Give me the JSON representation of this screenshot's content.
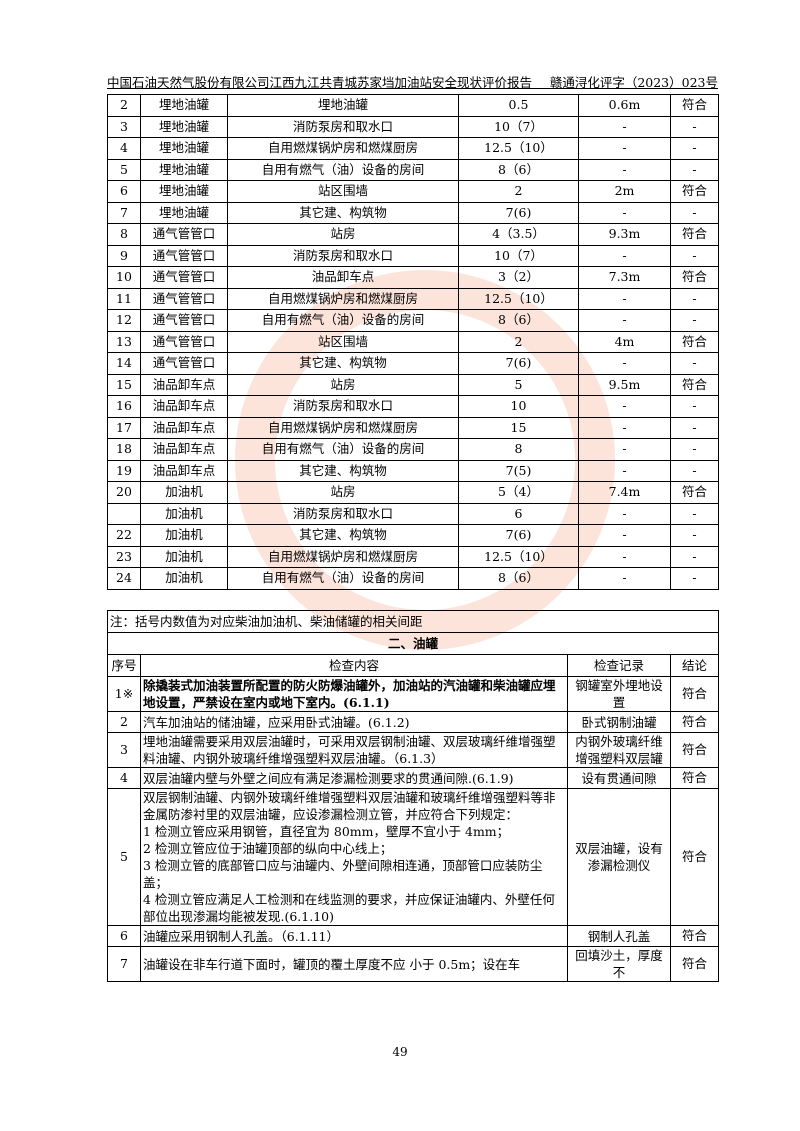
{
  "header": {
    "title": "中国石油天然气股份有限公司江西九江共青城苏家垱加油站安全现状评价报告",
    "doc_no": "赣通浔化评字（2023）023号"
  },
  "table1": {
    "rows": [
      [
        "2",
        "埋地油罐",
        "埋地油罐",
        "0.5",
        "0.6m",
        "符合"
      ],
      [
        "3",
        "埋地油罐",
        "消防泵房和取水口",
        "10（7）",
        "-",
        "-"
      ],
      [
        "4",
        "埋地油罐",
        "自用燃煤锅炉房和燃煤厨房",
        "12.5（10）",
        "-",
        "-"
      ],
      [
        "5",
        "埋地油罐",
        "自用有燃气（油）设备的房间",
        "8（6）",
        "-",
        "-"
      ],
      [
        "6",
        "埋地油罐",
        "站区围墙",
        "2",
        "2m",
        "符合"
      ],
      [
        "7",
        "埋地油罐",
        "其它建、构筑物",
        "7(6)",
        "-",
        "-"
      ],
      [
        "8",
        "通气管管口",
        "站房",
        "4（3.5）",
        "9.3m",
        "符合"
      ],
      [
        "9",
        "通气管管口",
        "消防泵房和取水口",
        "10（7）",
        "-",
        "-"
      ],
      [
        "10",
        "通气管管口",
        "油品卸车点",
        "3（2）",
        "7.3m",
        "符合"
      ],
      [
        "11",
        "通气管管口",
        "自用燃煤锅炉房和燃煤厨房",
        "12.5（10）",
        "-",
        "-"
      ],
      [
        "12",
        "通气管管口",
        "自用有燃气（油）设备的房间",
        "8（6）",
        "-",
        "-"
      ],
      [
        "13",
        "通气管管口",
        "站区围墙",
        "2",
        "4m",
        "符合"
      ],
      [
        "14",
        "通气管管口",
        "其它建、构筑物",
        "7(6)",
        "-",
        "-"
      ],
      [
        "15",
        "油品卸车点",
        "站房",
        "5",
        "9.5m",
        "符合"
      ],
      [
        "16",
        "油品卸车点",
        "消防泵房和取水口",
        "10",
        "-",
        "-"
      ],
      [
        "17",
        "油品卸车点",
        "自用燃煤锅炉房和燃煤厨房",
        "15",
        "-",
        "-"
      ],
      [
        "18",
        "油品卸车点",
        "自用有燃气（油）设备的房间",
        "8",
        "-",
        "-"
      ],
      [
        "19",
        "油品卸车点",
        "其它建、构筑物",
        "7(5)",
        "-",
        "-"
      ],
      [
        "20",
        "加油机",
        "站房",
        "5（4）",
        "7.4m",
        "符合"
      ],
      [
        "",
        "加油机",
        "消防泵房和取水口",
        "6",
        "-",
        "-"
      ],
      [
        "22",
        "加油机",
        "其它建、构筑物",
        "7(6)",
        "-",
        "-"
      ],
      [
        "23",
        "加油机",
        "自用燃煤锅炉房和燃煤厨房",
        "12.5（10）",
        "-",
        "-"
      ],
      [
        "24",
        "加油机",
        "自用有燃气（油）设备的房间",
        "8（6）",
        "-",
        "-"
      ]
    ]
  },
  "note": "注：括号内数值为对应柴油加油机、柴油储罐的相关间距",
  "section_title": "二、油罐",
  "table2": {
    "headers": [
      "序号",
      "检查内容",
      "检查记录",
      "结论"
    ],
    "rows": [
      {
        "no": "1※",
        "content": "除撬装式加油装置所配置的防火防爆油罐外，加油站的汽油罐和柴油罐应埋地设置，严禁设在室内或地下室内。(6.1.1)",
        "record": "钢罐室外埋地设置",
        "result": "符合",
        "bold": true
      },
      {
        "no": "2",
        "content": "汽车加油站的储油罐，应采用卧式油罐。(6.1.2)",
        "record": "卧式钢制油罐",
        "result": "符合"
      },
      {
        "no": "3",
        "content": "埋地油罐需要采用双层油罐时，可采用双层钢制油罐、双层玻璃纤维增强塑料油罐、内钢外玻璃纤维增强塑料双层油罐。（6.1.3）",
        "record": "内钢外玻璃纤维增强塑料双层罐",
        "result": "符合"
      },
      {
        "no": "4",
        "content": "双层油罐内壁与外壁之间应有满足渗漏检测要求的贯通间隙.(6.1.9)",
        "record": "设有贯通间隙",
        "result": "符合"
      },
      {
        "no": "5",
        "content_lines": [
          "双层钢制油罐、内钢外玻璃纤维增强塑料双层油罐和玻璃纤维增强塑料等非金属防渗衬里的双层油罐，应设渗漏检测立管，并应符合下列规定：",
          "1 检测立管应采用钢管，直径宜为 80mm，壁厚不宜小于 4mm；",
          "2 检测立管应位于油罐顶部的纵向中心线上；",
          "3 检测立管的底部管口应与油罐内、外壁间隙相连通，顶部管口应装防尘盖；",
          "4 检测立管应满足人工检测和在线监测的要求，并应保证油罐内、外壁任何部位出现渗漏均能被发现.(6.1.10)"
        ],
        "record": "双层油罐，设有渗漏检测仪",
        "result": "符合"
      },
      {
        "no": "6",
        "content": "油罐应采用钢制人孔盖。（6.1.11）",
        "record": "钢制人孔盖",
        "result": "符合"
      },
      {
        "no": "7",
        "content": "油罐设在非车行道下面时，罐顶的覆土厚度不应 小于 0.5m；设在车",
        "record": "回填沙土，厚度不",
        "result": "符合"
      }
    ]
  },
  "page_number": "49"
}
